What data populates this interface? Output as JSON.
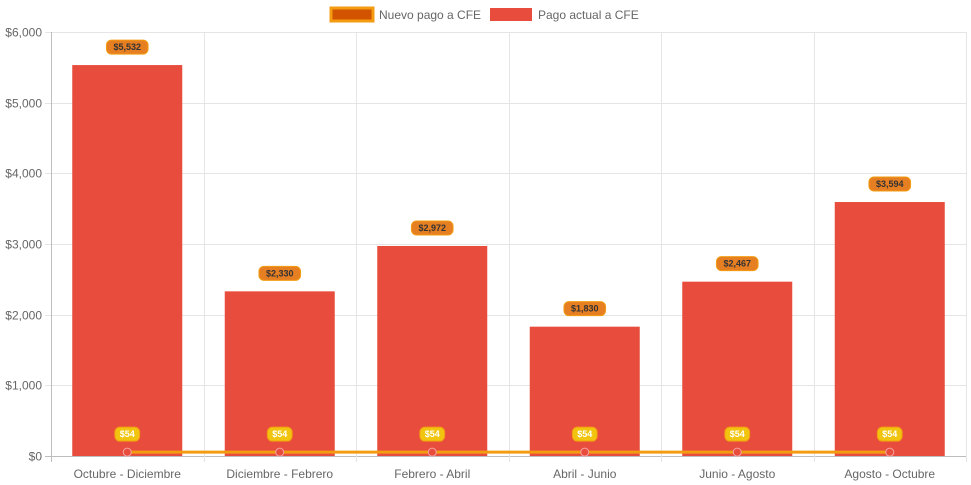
{
  "chart_data": {
    "type": "bar",
    "categories": [
      "Octubre - Diciembre",
      "Diciembre - Febrero",
      "Febrero - Abril",
      "Abril - Junio",
      "Junio - Agosto",
      "Agosto - Octubre"
    ],
    "series": [
      {
        "name": "Nuevo pago a CFE",
        "type": "line",
        "values": [
          54,
          54,
          54,
          54,
          54,
          54
        ],
        "labels": [
          "$54",
          "$54",
          "$54",
          "$54",
          "$54",
          "$54"
        ],
        "color": "#f39c12",
        "point_color": "#e74c3c",
        "label_bg": "#f1c40f",
        "label_text": "#ffffff"
      },
      {
        "name": "Pago actual a CFE",
        "type": "bar",
        "values": [
          5532,
          2330,
          2972,
          1830,
          2467,
          3594
        ],
        "labels": [
          "$5,532",
          "$2,330",
          "$2,972",
          "$1,830",
          "$2,467",
          "$3,594"
        ],
        "color": "#e74c3c",
        "label_bg": "#e67e22",
        "label_text": "#333333"
      }
    ],
    "ylim": [
      0,
      6000
    ],
    "yticks": [
      0,
      1000,
      2000,
      3000,
      4000,
      5000,
      6000
    ],
    "ytick_labels": [
      "$0",
      "$1,000",
      "$2,000",
      "$3,000",
      "$4,000",
      "$5,000",
      "$6,000"
    ],
    "grid": true,
    "legend_position": "top-center",
    "xlabel": "",
    "ylabel": ""
  }
}
